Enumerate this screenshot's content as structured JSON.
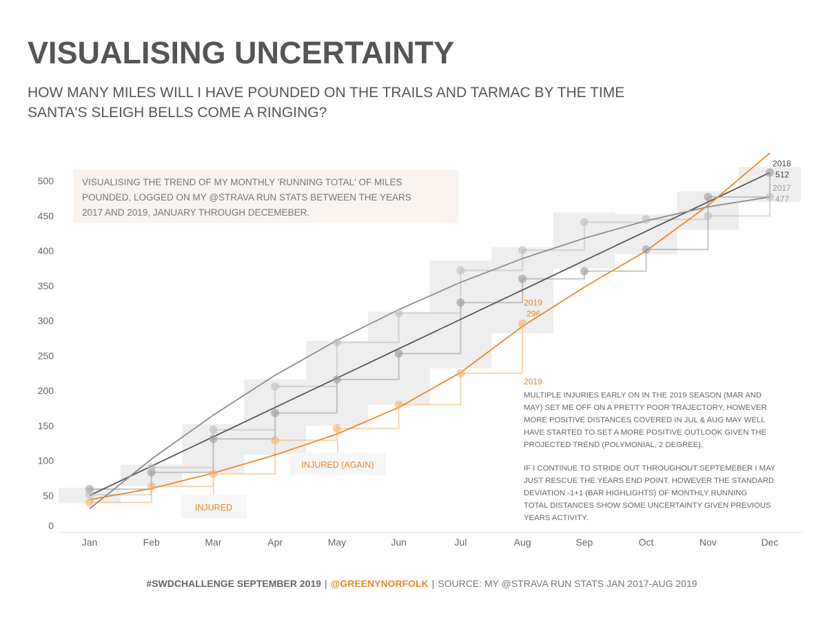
{
  "chart_data": {
    "type": "line",
    "title": "VISUALISING UNCERTAINTY",
    "subtitle": [
      "HOW MANY MILES WILL I HAVE POUNDED ON THE TRAILS AND TARMAC BY THE TIME",
      "SANTA'S SLEIGH BELLS COME A RINGING?"
    ],
    "note": [
      "VISUALISING THE TREND OF MY MONTHLY 'RUNNING TOTAL'  OF MILES",
      "POUNDED, LOGGED ON MY @STRAVA RUN STATS BETWEEN THE YEARS",
      "2017 AND 2019, JANUARY THROUGH DECEMEBER."
    ],
    "categories": [
      "Jan",
      "Feb",
      "Mar",
      "Apr",
      "May",
      "Jun",
      "Jul",
      "Aug",
      "Sep",
      "Oct",
      "Nov",
      "Dec"
    ],
    "series": [
      {
        "name": "2018",
        "color": "#999999",
        "values": [
          59,
          83,
          131,
          168,
          216,
          253,
          326,
          360,
          371,
          402,
          477,
          512
        ]
      },
      {
        "name": "2017",
        "color": "#bdbdbd",
        "values": [
          51,
          90,
          144,
          206,
          269,
          311,
          372,
          401,
          441,
          445,
          450,
          477
        ]
      },
      {
        "name": "2019",
        "color": "#f5b170",
        "values": [
          40,
          63,
          81,
          129,
          146,
          180,
          225,
          296,
          null,
          null,
          null,
          null
        ]
      }
    ],
    "trends": [
      {
        "color": "#555555",
        "values": [
          50,
          92,
          134,
          176,
          218,
          260,
          302,
          344,
          386,
          428,
          470,
          512
        ]
      },
      {
        "color": "#8c8c8c",
        "values": [
          31,
          102,
          165,
          222,
          272,
          316,
          355,
          389,
          418,
          443,
          463,
          477
        ]
      },
      {
        "color": "#e8892b",
        "values": [
          44,
          60,
          82,
          108,
          138,
          176,
          226,
          292,
          348,
          400,
          465,
          540
        ]
      }
    ],
    "band": {
      "color": "#eeeeee",
      "lower": [
        39,
        64,
        82,
        108,
        150,
        180,
        232,
        282,
        375,
        395,
        430,
        470
      ],
      "upper": [
        61,
        94,
        152,
        216,
        271,
        313,
        386,
        405,
        455,
        452,
        485,
        520
      ]
    },
    "ylim": [
      0,
      547
    ],
    "yticks": [
      0,
      50,
      100,
      150,
      200,
      250,
      300,
      350,
      400,
      450,
      500
    ],
    "annotations": {
      "injured": "INJURED",
      "injured_again": "INJURED (AGAIN)",
      "comment_title": "2019",
      "comment": [
        "MULTIPLE INJURIES EARLY ON IN THE 2019 SEASON (MAR AND",
        "MAY) SET ME OFF ON A PRETTY POOR TRAJECTORY, HOWEVER",
        "MORE POSITIVE DISTANCES COVERED IN JUL & AUG MAY WELL",
        "HAVE STARTED TO SET A MORE POSITIVE OUTLOOK GIVEN THE",
        "PROJECTED TREND (POLYMONIAL, 2 DEGREE),",
        "IF I CONTINUE TO STRIDE OUT THROUGHOUT SEPTEMEBER I MAY",
        "JUST RESCUE THE YEARS END POINT. HOWEVER THE STANDARD",
        "DEVIATION -1+1 (BAR HIGHLIGHTS) OF MONTHLY RUNNING",
        "TOTAL DISTANCES SHOW SOME UNCERTAINTY GIVEN PREVIOUS",
        "YEARS ACTIVITY."
      ]
    },
    "footer": [
      "#SWDCHALLENGE SEPTEMBER 2019",
      "|",
      "@GREENYNORFOLK",
      "|",
      "SOURCE: MY @STRAVA RUN STATS JAN 2017-AUG 2019"
    ]
  }
}
